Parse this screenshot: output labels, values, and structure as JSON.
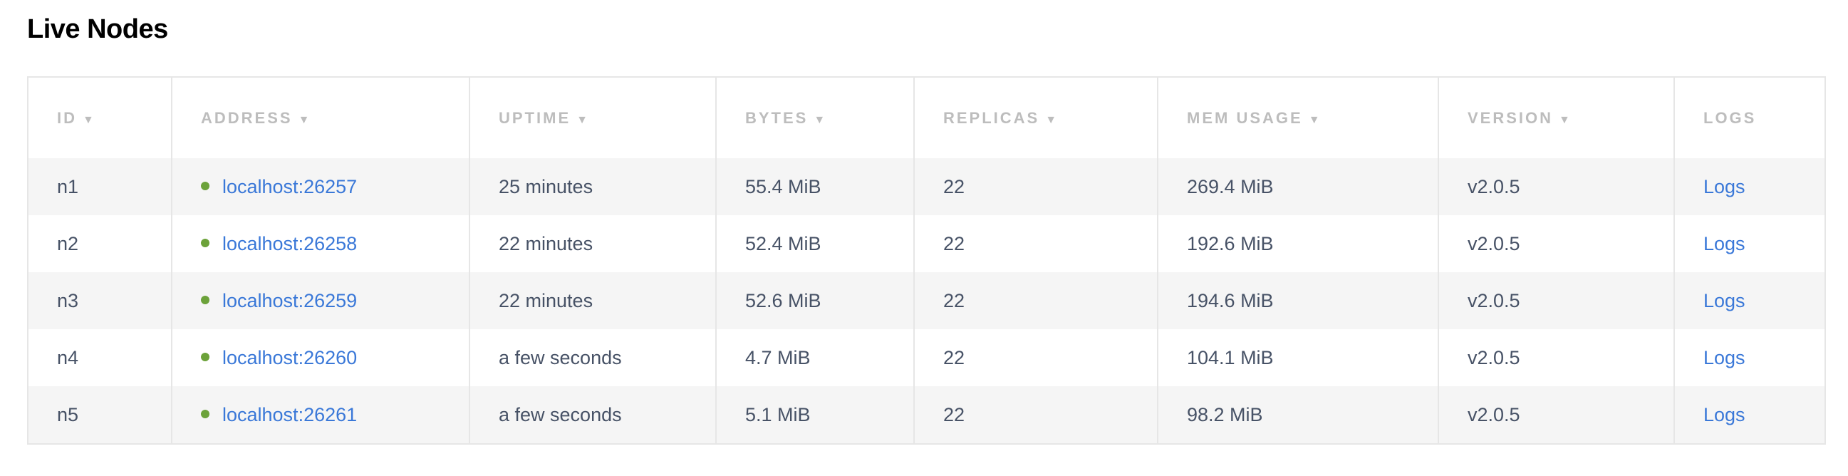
{
  "title": "Live Nodes",
  "colors": {
    "link": "#3a78d8",
    "status_live": "#6ca23a",
    "text": "#475266",
    "header": "#bdbdbd"
  },
  "columns": [
    {
      "label": "ID",
      "sortable": true
    },
    {
      "label": "Address",
      "sortable": true
    },
    {
      "label": "Uptime",
      "sortable": true
    },
    {
      "label": "Bytes",
      "sortable": true
    },
    {
      "label": "Replicas",
      "sortable": true
    },
    {
      "label": "Mem Usage",
      "sortable": true
    },
    {
      "label": "Version",
      "sortable": true
    },
    {
      "label": "Logs",
      "sortable": false
    }
  ],
  "sort_icon": "▼",
  "rows": [
    {
      "id": "n1",
      "address": "localhost:26257",
      "uptime": "25 minutes",
      "bytes": "55.4 MiB",
      "replicas": "22",
      "mem": "269.4 MiB",
      "version": "v2.0.5",
      "logs": "Logs",
      "status": "live"
    },
    {
      "id": "n2",
      "address": "localhost:26258",
      "uptime": "22 minutes",
      "bytes": "52.4 MiB",
      "replicas": "22",
      "mem": "192.6 MiB",
      "version": "v2.0.5",
      "logs": "Logs",
      "status": "live"
    },
    {
      "id": "n3",
      "address": "localhost:26259",
      "uptime": "22 minutes",
      "bytes": "52.6 MiB",
      "replicas": "22",
      "mem": "194.6 MiB",
      "version": "v2.0.5",
      "logs": "Logs",
      "status": "live"
    },
    {
      "id": "n4",
      "address": "localhost:26260",
      "uptime": "a few seconds",
      "bytes": "4.7 MiB",
      "replicas": "22",
      "mem": "104.1 MiB",
      "version": "v2.0.5",
      "logs": "Logs",
      "status": "live"
    },
    {
      "id": "n5",
      "address": "localhost:26261",
      "uptime": "a few seconds",
      "bytes": "5.1 MiB",
      "replicas": "22",
      "mem": "98.2 MiB",
      "version": "v2.0.5",
      "logs": "Logs",
      "status": "live"
    }
  ]
}
